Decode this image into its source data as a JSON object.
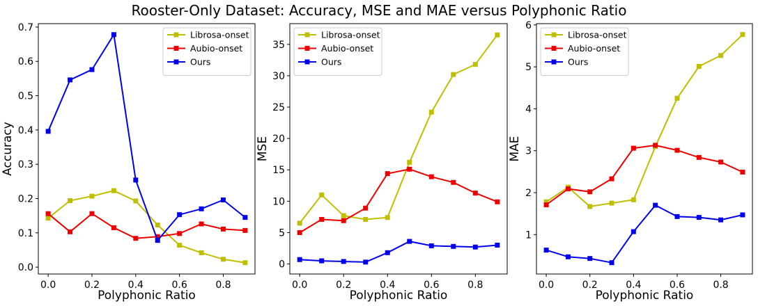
{
  "figure": {
    "title": "Rooster-Only Dataset: Accuracy, MSE and MAE versus Polyphonic Ratio"
  },
  "colors": {
    "Librosa-onset": "#bfbf00",
    "Aubio-onset": "#ee0000",
    "Ours": "#0000ee"
  },
  "chart_data": [
    {
      "type": "line",
      "title": "",
      "xlabel": "Polyphonic Ratio",
      "ylabel": "Accuracy",
      "x": [
        0.0,
        0.1,
        0.2,
        0.3,
        0.4,
        0.5,
        0.6,
        0.7,
        0.8,
        0.9
      ],
      "xlim": [
        -0.045,
        0.945
      ],
      "ylim": [
        -0.02,
        0.71
      ],
      "xticks": [
        0.0,
        0.2,
        0.4,
        0.6,
        0.8
      ],
      "xtick_labels": [
        "0.0",
        "0.2",
        "0.4",
        "0.6",
        "0.8"
      ],
      "yticks": [
        0.0,
        0.1,
        0.2,
        0.3,
        0.4,
        0.5,
        0.6,
        0.7
      ],
      "ytick_labels": [
        "0.0",
        "0.1",
        "0.2",
        "0.3",
        "0.4",
        "0.5",
        "0.6",
        "0.7"
      ],
      "grid": false,
      "legend": "top-right",
      "series": [
        {
          "name": "Librosa-onset",
          "values": [
            0.143,
            0.194,
            0.207,
            0.223,
            0.193,
            0.123,
            0.064,
            0.042,
            0.023,
            0.013
          ]
        },
        {
          "name": "Aubio-onset",
          "values": [
            0.156,
            0.103,
            0.156,
            0.115,
            0.084,
            0.089,
            0.098,
            0.126,
            0.111,
            0.107
          ]
        },
        {
          "name": "Ours",
          "values": [
            0.396,
            0.546,
            0.576,
            0.678,
            0.254,
            0.078,
            0.153,
            0.17,
            0.196,
            0.145
          ]
        }
      ]
    },
    {
      "type": "line",
      "title": "",
      "xlabel": "Polyphonic Ratio",
      "ylabel": "MSE",
      "x": [
        0.0,
        0.1,
        0.2,
        0.3,
        0.4,
        0.5,
        0.6,
        0.7,
        0.8,
        0.9
      ],
      "xlim": [
        -0.045,
        0.945
      ],
      "ylim": [
        -1.6,
        38.3
      ],
      "xticks": [
        0.0,
        0.2,
        0.4,
        0.6,
        0.8
      ],
      "xtick_labels": [
        "0.0",
        "0.2",
        "0.4",
        "0.6",
        "0.8"
      ],
      "yticks": [
        0,
        5,
        10,
        15,
        20,
        25,
        30,
        35
      ],
      "ytick_labels": [
        "0",
        "5",
        "10",
        "15",
        "20",
        "25",
        "30",
        "35"
      ],
      "grid": false,
      "legend": "top-left",
      "series": [
        {
          "name": "Librosa-onset",
          "values": [
            6.5,
            11.0,
            7.7,
            7.1,
            7.4,
            16.2,
            24.2,
            30.2,
            31.8,
            36.5
          ]
        },
        {
          "name": "Aubio-onset",
          "values": [
            5.0,
            7.1,
            6.9,
            8.9,
            14.4,
            15.1,
            13.9,
            13.0,
            11.3,
            9.9
          ]
        },
        {
          "name": "Ours",
          "values": [
            0.7,
            0.5,
            0.4,
            0.3,
            1.8,
            3.6,
            2.9,
            2.8,
            2.7,
            3.0
          ]
        }
      ]
    },
    {
      "type": "line",
      "title": "",
      "xlabel": "Polyphonic Ratio",
      "ylabel": "MAE",
      "x": [
        0.0,
        0.1,
        0.2,
        0.3,
        0.4,
        0.5,
        0.6,
        0.7,
        0.8,
        0.9
      ],
      "xlim": [
        -0.045,
        0.945
      ],
      "ylim": [
        0.06,
        6.03
      ],
      "xticks": [
        0.0,
        0.2,
        0.4,
        0.6,
        0.8
      ],
      "xtick_labels": [
        "0.0",
        "0.2",
        "0.4",
        "0.6",
        "0.8"
      ],
      "yticks": [
        1,
        2,
        3,
        4,
        5,
        6
      ],
      "ytick_labels": [
        "1",
        "2",
        "3",
        "4",
        "5",
        "6"
      ],
      "grid": false,
      "legend": "top-left",
      "series": [
        {
          "name": "Librosa-onset",
          "values": [
            1.78,
            2.13,
            1.67,
            1.75,
            1.83,
            3.1,
            4.25,
            5.01,
            5.27,
            5.77
          ]
        },
        {
          "name": "Aubio-onset",
          "values": [
            1.71,
            2.09,
            2.02,
            2.33,
            3.06,
            3.13,
            3.01,
            2.84,
            2.73,
            2.49
          ]
        },
        {
          "name": "Ours",
          "values": [
            0.63,
            0.47,
            0.43,
            0.33,
            1.07,
            1.7,
            1.43,
            1.41,
            1.35,
            1.47
          ]
        }
      ]
    }
  ]
}
